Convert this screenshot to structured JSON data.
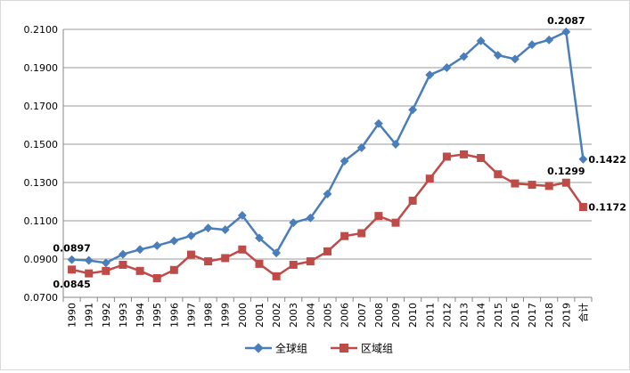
{
  "chart_data": {
    "type": "line",
    "title": "",
    "xlabel": "",
    "ylabel": "",
    "categories": [
      "1990",
      "1991",
      "1992",
      "1993",
      "1994",
      "1995",
      "1996",
      "1997",
      "1998",
      "1999",
      "2000",
      "2001",
      "2002",
      "2003",
      "2004",
      "2005",
      "2006",
      "2007",
      "2008",
      "2009",
      "2010",
      "2011",
      "2012",
      "2013",
      "2014",
      "2015",
      "2016",
      "2017",
      "2018",
      "2019",
      "合计"
    ],
    "ylim": [
      0.07,
      0.21
    ],
    "yticks": [
      "0.0700",
      "0.0900",
      "0.1100",
      "0.1300",
      "0.1500",
      "0.1700",
      "0.1900",
      "0.2100"
    ],
    "grid": "horizontal",
    "legend_position": "bottom",
    "series": [
      {
        "name": "全球组",
        "color": "#4a7ebb",
        "marker": "diamond",
        "values": [
          0.0897,
          0.0893,
          0.088,
          0.0925,
          0.095,
          0.097,
          0.0995,
          0.1022,
          0.1062,
          0.1053,
          0.1128,
          0.101,
          0.0932,
          0.109,
          0.1115,
          0.124,
          0.1412,
          0.1482,
          0.1608,
          0.15,
          0.168,
          0.1862,
          0.19,
          0.1958,
          0.204,
          0.1965,
          0.1945,
          0.202,
          0.2045,
          0.2087,
          0.1422
        ]
      },
      {
        "name": "区域组",
        "color": "#be4b48",
        "marker": "square",
        "values": [
          0.0845,
          0.0825,
          0.0838,
          0.087,
          0.0838,
          0.08,
          0.0843,
          0.0923,
          0.0888,
          0.0905,
          0.095,
          0.0875,
          0.081,
          0.087,
          0.0888,
          0.094,
          0.102,
          0.1035,
          0.1125,
          0.109,
          0.1205,
          0.132,
          0.1435,
          0.1447,
          0.1428,
          0.1343,
          0.1295,
          0.1288,
          0.1282,
          0.1299,
          0.1172
        ]
      }
    ],
    "annotations": [
      {
        "series": 0,
        "index": 0,
        "text": "0.0897",
        "pos": "above"
      },
      {
        "series": 1,
        "index": 0,
        "text": "0.0845",
        "pos": "below"
      },
      {
        "series": 0,
        "index": 29,
        "text": "0.2087",
        "pos": "above"
      },
      {
        "series": 0,
        "index": 30,
        "text": "0.1422",
        "pos": "right"
      },
      {
        "series": 1,
        "index": 29,
        "text": "0.1299",
        "pos": "above"
      },
      {
        "series": 1,
        "index": 30,
        "text": "0.1172",
        "pos": "right"
      }
    ]
  }
}
